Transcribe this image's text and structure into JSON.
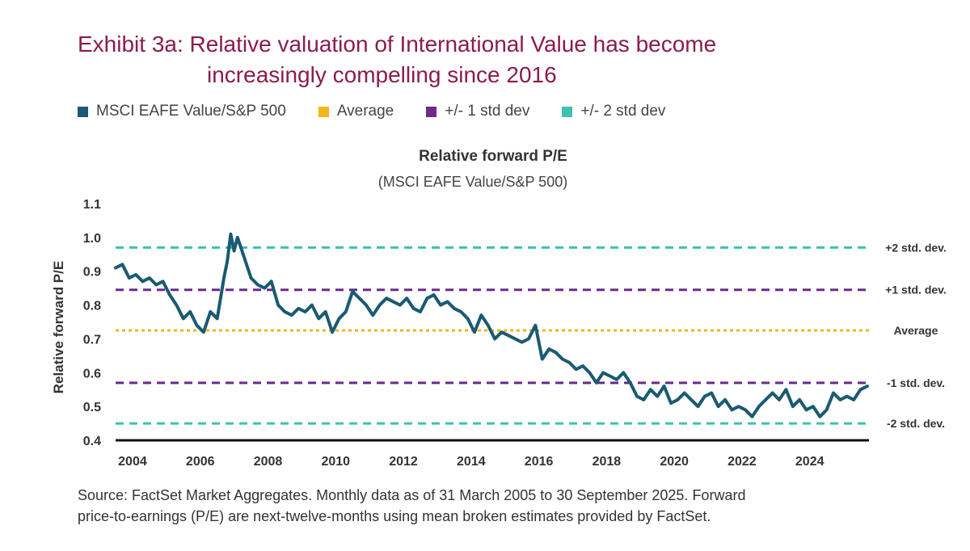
{
  "title": {
    "line1": "Exhibit 3a: Relative valuation of International Value has become",
    "line2": "increasingly compelling since 2016"
  },
  "legend": [
    {
      "label": "MSCI EAFE Value/S&P 500",
      "color": "#1a5a72"
    },
    {
      "label": "Average",
      "color": "#f2b51c"
    },
    {
      "label": "+/- 1 std dev",
      "color": "#6b2a8c"
    },
    {
      "label": "+/- 2 std dev",
      "color": "#3fc0b0"
    }
  ],
  "footer": {
    "line1": "Source: FactSet Market Aggregates. Monthly data as of 31 March 2005 to 30 September 2025. Forward",
    "line2": "price-to-earnings (P/E) are next-twelve-months using mean broken estimates provided by FactSet."
  },
  "chart_data": {
    "type": "line",
    "title": "Relative forward P/E",
    "subtitle": "(MSCI EAFE Value/S&P 500)",
    "xlabel": "",
    "ylabel": "Relative forward P/E",
    "xlim": [
      2003.5,
      2025.75
    ],
    "ylim": [
      0.4,
      1.1
    ],
    "yticks": [
      "0.4",
      "0.5",
      "0.6",
      "0.7",
      "0.8",
      "0.9",
      "1.0",
      "1.1"
    ],
    "xticks": [
      "2004",
      "2006",
      "2008",
      "2010",
      "2012",
      "2014",
      "2016",
      "2018",
      "2020",
      "2022",
      "2024"
    ],
    "reference_lines": [
      {
        "label": "+2 std. dev.",
        "value": 0.97,
        "color": "#3fc0b0"
      },
      {
        "label": "+1 std. dev.",
        "value": 0.845,
        "color": "#6b2a8c"
      },
      {
        "label": "Average",
        "value": 0.725,
        "color": "#f2b51c"
      },
      {
        "label": "-1 std. dev.",
        "value": 0.57,
        "color": "#6b2a8c"
      },
      {
        "label": "-2 std. dev.",
        "value": 0.45,
        "color": "#3fc0b0"
      }
    ],
    "series": [
      {
        "name": "MSCI EAFE Value/S&P 500",
        "color": "#1a5a72",
        "x": [
          2003.5,
          2003.7,
          2003.9,
          2004.1,
          2004.3,
          2004.5,
          2004.7,
          2004.9,
          2005.1,
          2005.3,
          2005.5,
          2005.7,
          2005.9,
          2006.1,
          2006.3,
          2006.5,
          2006.7,
          2006.8,
          2006.9,
          2007.0,
          2007.1,
          2007.2,
          2007.3,
          2007.5,
          2007.7,
          2007.9,
          2008.1,
          2008.3,
          2008.5,
          2008.7,
          2008.9,
          2009.1,
          2009.3,
          2009.5,
          2009.7,
          2009.9,
          2010.1,
          2010.3,
          2010.5,
          2010.7,
          2010.9,
          2011.1,
          2011.3,
          2011.5,
          2011.7,
          2011.9,
          2012.1,
          2012.3,
          2012.5,
          2012.7,
          2012.9,
          2013.1,
          2013.3,
          2013.5,
          2013.7,
          2013.9,
          2014.1,
          2014.3,
          2014.5,
          2014.7,
          2014.9,
          2015.1,
          2015.3,
          2015.5,
          2015.7,
          2015.9,
          2016.1,
          2016.3,
          2016.5,
          2016.7,
          2016.9,
          2017.1,
          2017.3,
          2017.5,
          2017.7,
          2017.9,
          2018.1,
          2018.3,
          2018.5,
          2018.7,
          2018.9,
          2019.1,
          2019.3,
          2019.5,
          2019.7,
          2019.9,
          2020.1,
          2020.3,
          2020.5,
          2020.7,
          2020.9,
          2021.1,
          2021.3,
          2021.5,
          2021.7,
          2021.9,
          2022.1,
          2022.3,
          2022.5,
          2022.7,
          2022.9,
          2023.1,
          2023.3,
          2023.5,
          2023.7,
          2023.9,
          2024.1,
          2024.3,
          2024.5,
          2024.7,
          2024.9,
          2025.1,
          2025.3,
          2025.5,
          2025.7
        ],
        "values": [
          0.91,
          0.92,
          0.88,
          0.89,
          0.87,
          0.88,
          0.86,
          0.87,
          0.83,
          0.8,
          0.76,
          0.78,
          0.74,
          0.72,
          0.78,
          0.76,
          0.88,
          0.93,
          1.01,
          0.96,
          1.0,
          0.97,
          0.94,
          0.88,
          0.86,
          0.85,
          0.87,
          0.8,
          0.78,
          0.77,
          0.79,
          0.78,
          0.8,
          0.76,
          0.78,
          0.72,
          0.76,
          0.78,
          0.84,
          0.82,
          0.8,
          0.77,
          0.8,
          0.82,
          0.81,
          0.8,
          0.82,
          0.79,
          0.78,
          0.82,
          0.83,
          0.8,
          0.81,
          0.79,
          0.78,
          0.76,
          0.72,
          0.77,
          0.74,
          0.7,
          0.72,
          0.71,
          0.7,
          0.69,
          0.7,
          0.74,
          0.64,
          0.67,
          0.66,
          0.64,
          0.63,
          0.61,
          0.62,
          0.6,
          0.57,
          0.6,
          0.59,
          0.58,
          0.6,
          0.57,
          0.53,
          0.52,
          0.55,
          0.53,
          0.56,
          0.51,
          0.52,
          0.54,
          0.52,
          0.5,
          0.53,
          0.54,
          0.5,
          0.52,
          0.49,
          0.5,
          0.49,
          0.47,
          0.5,
          0.52,
          0.54,
          0.52,
          0.55,
          0.5,
          0.52,
          0.49,
          0.5,
          0.47,
          0.49,
          0.54,
          0.52,
          0.53,
          0.52,
          0.55,
          0.56
        ]
      }
    ]
  }
}
